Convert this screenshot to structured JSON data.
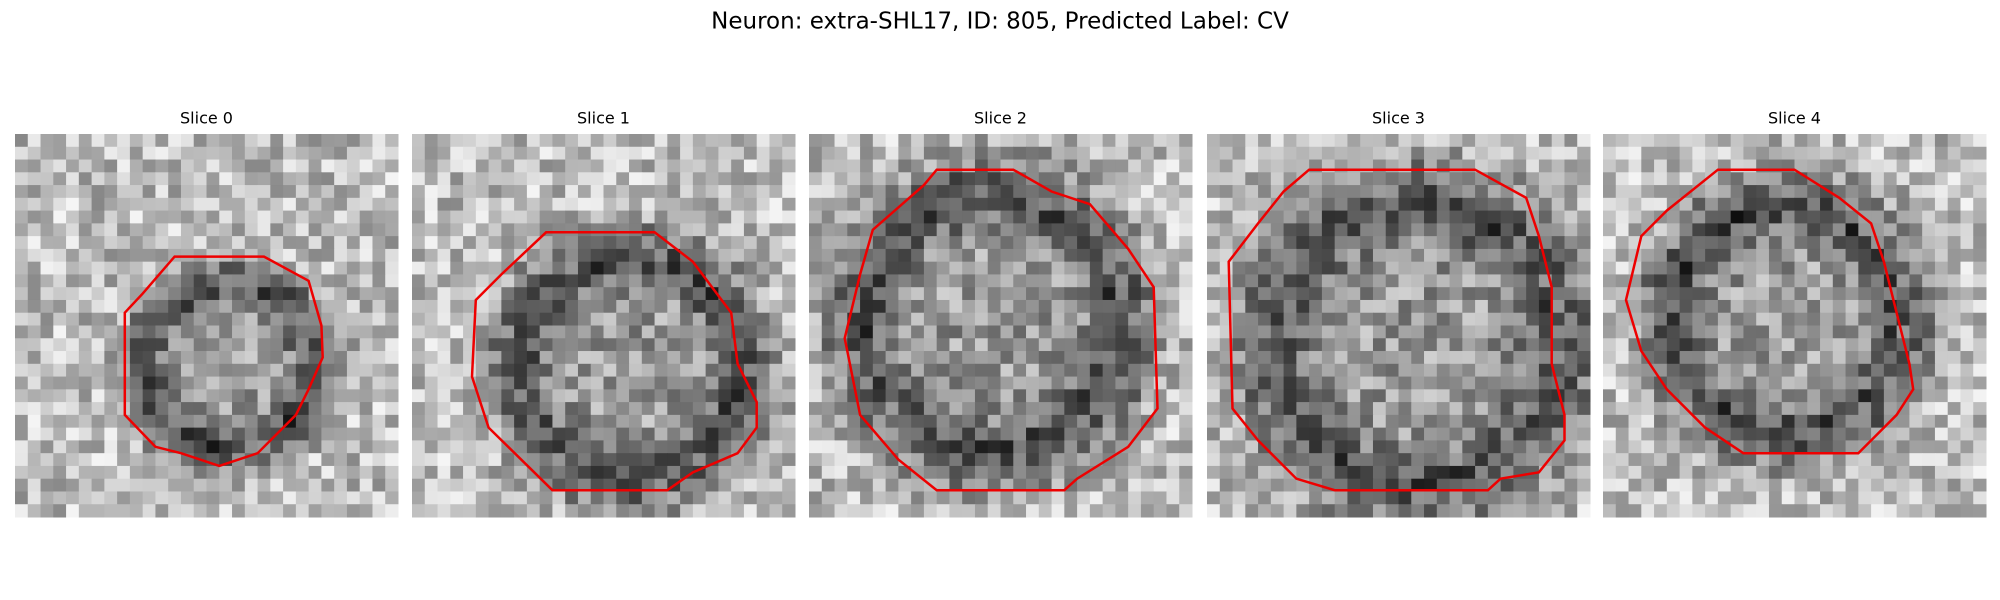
{
  "title": "Neuron: extra-SHL17, ID: 805, Predicted Label: CV",
  "panels": [
    {
      "title": "Slice 0"
    },
    {
      "title": "Slice 1"
    },
    {
      "title": "Slice 2"
    },
    {
      "title": "Slice 3"
    },
    {
      "title": "Slice 4"
    }
  ]
}
